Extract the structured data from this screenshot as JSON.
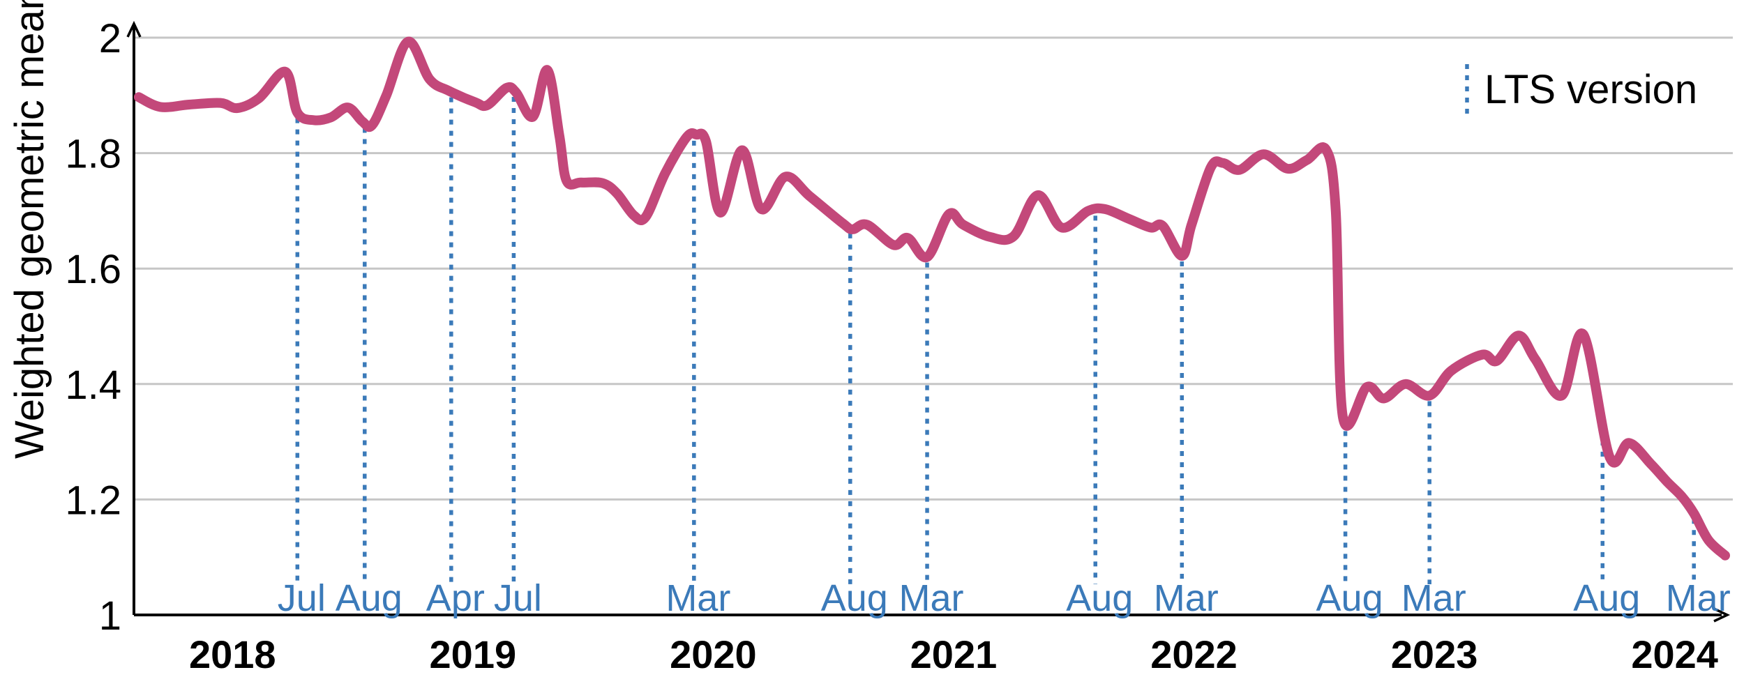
{
  "chart_data": {
    "type": "line",
    "title": "",
    "y_label": "Weighted geometric mean",
    "x_label": "",
    "legend_label": "LTS version",
    "legend_position": "top-right",
    "grid": true,
    "x_range": [
      2017.59,
      2024.21
    ],
    "y_range": [
      1,
      2
    ],
    "y_ticks": [
      {
        "value": 1,
        "label": "1"
      },
      {
        "value": 1.2,
        "label": "1.2"
      },
      {
        "value": 1.4,
        "label": "1.4"
      },
      {
        "value": 1.6,
        "label": "1.6"
      },
      {
        "value": 1.8,
        "label": "1.8"
      },
      {
        "value": 2,
        "label": "2"
      }
    ],
    "x_ticks": [
      {
        "value": 2018,
        "label": "2018"
      },
      {
        "value": 2019,
        "label": "2019"
      },
      {
        "value": 2020,
        "label": "2020"
      },
      {
        "value": 2021,
        "label": "2021"
      },
      {
        "value": 2022,
        "label": "2022"
      },
      {
        "value": 2023,
        "label": "2023"
      },
      {
        "value": 2024,
        "label": "2024"
      }
    ],
    "colors": {
      "series": "#c3487a",
      "lts": "#3b7ab9",
      "grid": "#c6c6c6",
      "axis": "#000000"
    },
    "lts_markers": [
      {
        "label": "Jul",
        "x": 2018.27
      },
      {
        "label": "Aug",
        "x": 2018.55
      },
      {
        "label": "Apr",
        "x": 2018.91
      },
      {
        "label": "Jul",
        "x": 2019.17
      },
      {
        "label": "Mar",
        "x": 2019.92
      },
      {
        "label": "Aug",
        "x": 2020.57
      },
      {
        "label": "Mar",
        "x": 2020.89
      },
      {
        "label": "Aug",
        "x": 2021.59
      },
      {
        "label": "Mar",
        "x": 2021.95
      },
      {
        "label": "Aug",
        "x": 2022.63
      },
      {
        "label": "Mar",
        "x": 2022.98
      },
      {
        "label": "Aug",
        "x": 2023.7
      },
      {
        "label": "Mar",
        "x": 2024.08
      }
    ],
    "series": [
      {
        "name": "Weighted geometric mean",
        "points": [
          [
            2017.61,
            1.897
          ],
          [
            2017.7,
            1.88
          ],
          [
            2017.82,
            1.884
          ],
          [
            2017.95,
            1.887
          ],
          [
            2018.02,
            1.878
          ],
          [
            2018.11,
            1.895
          ],
          [
            2018.22,
            1.941
          ],
          [
            2018.27,
            1.87
          ],
          [
            2018.34,
            1.857
          ],
          [
            2018.41,
            1.862
          ],
          [
            2018.48,
            1.879
          ],
          [
            2018.54,
            1.855
          ],
          [
            2018.58,
            1.848
          ],
          [
            2018.64,
            1.9
          ],
          [
            2018.73,
            1.993
          ],
          [
            2018.82,
            1.928
          ],
          [
            2018.9,
            1.908
          ],
          [
            2019.01,
            1.888
          ],
          [
            2019.06,
            1.883
          ],
          [
            2019.14,
            1.913
          ],
          [
            2019.18,
            1.905
          ],
          [
            2019.25,
            1.863
          ],
          [
            2019.31,
            1.944
          ],
          [
            2019.36,
            1.83
          ],
          [
            2019.39,
            1.752
          ],
          [
            2019.45,
            1.749
          ],
          [
            2019.54,
            1.748
          ],
          [
            2019.6,
            1.73
          ],
          [
            2019.67,
            1.692
          ],
          [
            2019.72,
            1.69
          ],
          [
            2019.8,
            1.765
          ],
          [
            2019.89,
            1.828
          ],
          [
            2019.93,
            1.832
          ],
          [
            2019.97,
            1.82
          ],
          [
            2020.03,
            1.697
          ],
          [
            2020.12,
            1.805
          ],
          [
            2020.2,
            1.703
          ],
          [
            2020.3,
            1.759
          ],
          [
            2020.4,
            1.726
          ],
          [
            2020.54,
            1.678
          ],
          [
            2020.58,
            1.668
          ],
          [
            2020.64,
            1.676
          ],
          [
            2020.75,
            1.641
          ],
          [
            2020.81,
            1.653
          ],
          [
            2020.89,
            1.62
          ],
          [
            2020.98,
            1.694
          ],
          [
            2021.04,
            1.676
          ],
          [
            2021.15,
            1.655
          ],
          [
            2021.25,
            1.656
          ],
          [
            2021.35,
            1.727
          ],
          [
            2021.45,
            1.671
          ],
          [
            2021.56,
            1.7
          ],
          [
            2021.63,
            1.703
          ],
          [
            2021.73,
            1.686
          ],
          [
            2021.82,
            1.671
          ],
          [
            2021.87,
            1.674
          ],
          [
            2021.95,
            1.622
          ],
          [
            2021.99,
            1.676
          ],
          [
            2022.07,
            1.775
          ],
          [
            2022.12,
            1.783
          ],
          [
            2022.19,
            1.771
          ],
          [
            2022.29,
            1.798
          ],
          [
            2022.39,
            1.773
          ],
          [
            2022.47,
            1.788
          ],
          [
            2022.55,
            1.806
          ],
          [
            2022.59,
            1.7
          ],
          [
            2022.62,
            1.342
          ],
          [
            2022.72,
            1.395
          ],
          [
            2022.79,
            1.375
          ],
          [
            2022.88,
            1.4
          ],
          [
            2022.98,
            1.38
          ],
          [
            2023.07,
            1.423
          ],
          [
            2023.2,
            1.451
          ],
          [
            2023.26,
            1.44
          ],
          [
            2023.35,
            1.484
          ],
          [
            2023.42,
            1.443
          ],
          [
            2023.53,
            1.38
          ],
          [
            2023.62,
            1.486
          ],
          [
            2023.73,
            1.273
          ],
          [
            2023.81,
            1.298
          ],
          [
            2023.9,
            1.262
          ],
          [
            2023.97,
            1.23
          ],
          [
            2024.03,
            1.205
          ],
          [
            2024.08,
            1.176
          ],
          [
            2024.14,
            1.13
          ],
          [
            2024.21,
            1.103
          ]
        ]
      }
    ]
  }
}
